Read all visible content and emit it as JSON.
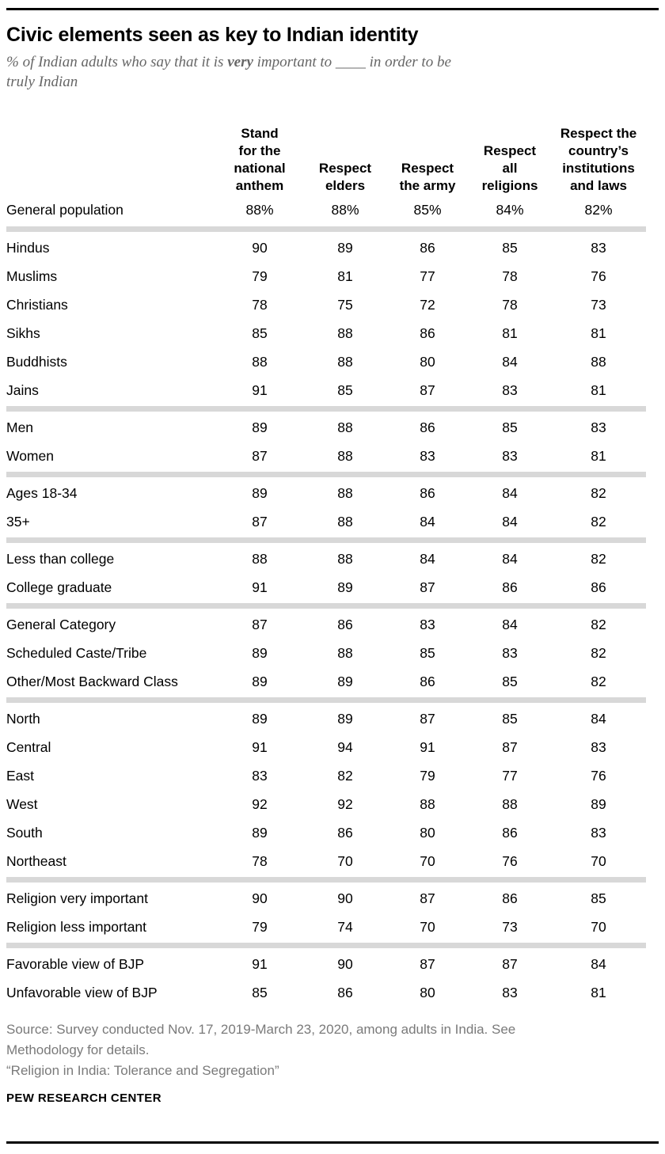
{
  "header": {
    "title": "Civic elements seen as key to Indian identity",
    "subtitle": {
      "prefix": "% of Indian adults who say that it is ",
      "bold": "very",
      "suffix": " important to ____ in order to be",
      "line2": "truly Indian"
    }
  },
  "chart_data": {
    "type": "table",
    "title": "Civic elements seen as key to Indian identity",
    "subtitle": "% of Indian adults who say that it is very important to ____ in order to be truly Indian",
    "unit": "% saying very important",
    "columns": [
      "Stand for the national anthem",
      "Respect elders",
      "Respect the army",
      "Respect all religions",
      "Respect the country’s institutions and laws"
    ],
    "column_headers": [
      [
        "Stand",
        "for the",
        "national",
        "anthem"
      ],
      [
        "Respect",
        "elders"
      ],
      [
        "Respect",
        "the army"
      ],
      [
        "Respect",
        "all",
        "religions"
      ],
      [
        "Respect the",
        "country’s",
        "institutions",
        "and laws"
      ]
    ],
    "general_population": {
      "label": "General population",
      "values": [
        "88%",
        "88%",
        "85%",
        "84%",
        "82%"
      ]
    },
    "groups": [
      {
        "name": "religious-group",
        "rows": [
          {
            "label": "Hindus",
            "values": [
              90,
              89,
              86,
              85,
              83
            ]
          },
          {
            "label": "Muslims",
            "values": [
              79,
              81,
              77,
              78,
              76
            ]
          },
          {
            "label": "Christians",
            "values": [
              78,
              75,
              72,
              78,
              73
            ]
          },
          {
            "label": "Sikhs",
            "values": [
              85,
              88,
              86,
              81,
              81
            ]
          },
          {
            "label": "Buddhists",
            "values": [
              88,
              88,
              80,
              84,
              88
            ]
          },
          {
            "label": "Jains",
            "values": [
              91,
              85,
              87,
              83,
              81
            ]
          }
        ]
      },
      {
        "name": "gender",
        "rows": [
          {
            "label": "Men",
            "values": [
              89,
              88,
              86,
              85,
              83
            ]
          },
          {
            "label": "Women",
            "values": [
              87,
              88,
              83,
              83,
              81
            ]
          }
        ]
      },
      {
        "name": "age",
        "rows": [
          {
            "label": "Ages 18-34",
            "values": [
              89,
              88,
              86,
              84,
              82
            ]
          },
          {
            "label": "35+",
            "values": [
              87,
              88,
              84,
              84,
              82
            ]
          }
        ]
      },
      {
        "name": "education",
        "rows": [
          {
            "label": "Less than college",
            "values": [
              88,
              88,
              84,
              84,
              82
            ]
          },
          {
            "label": "College graduate",
            "values": [
              91,
              89,
              87,
              86,
              86
            ]
          }
        ]
      },
      {
        "name": "caste",
        "rows": [
          {
            "label": "General Category",
            "values": [
              87,
              86,
              83,
              84,
              82
            ]
          },
          {
            "label": "Scheduled Caste/Tribe",
            "values": [
              89,
              88,
              85,
              83,
              82
            ]
          },
          {
            "label": "Other/Most Backward Class",
            "values": [
              89,
              89,
              86,
              85,
              82
            ]
          }
        ]
      },
      {
        "name": "region",
        "rows": [
          {
            "label": "North",
            "values": [
              89,
              89,
              87,
              85,
              84
            ]
          },
          {
            "label": "Central",
            "values": [
              91,
              94,
              91,
              87,
              83
            ]
          },
          {
            "label": "East",
            "values": [
              83,
              82,
              79,
              77,
              76
            ]
          },
          {
            "label": "West",
            "values": [
              92,
              92,
              88,
              88,
              89
            ]
          },
          {
            "label": "South",
            "values": [
              89,
              86,
              80,
              86,
              83
            ]
          },
          {
            "label": "Northeast",
            "values": [
              78,
              70,
              70,
              76,
              70
            ]
          }
        ]
      },
      {
        "name": "religion-importance",
        "rows": [
          {
            "label": "Religion very important",
            "values": [
              90,
              90,
              87,
              86,
              85
            ]
          },
          {
            "label": "Religion less important",
            "values": [
              79,
              74,
              70,
              73,
              70
            ]
          }
        ]
      },
      {
        "name": "bjp-view",
        "rows": [
          {
            "label": "Favorable view of BJP",
            "values": [
              91,
              90,
              87,
              87,
              84
            ]
          },
          {
            "label": "Unfavorable view of BJP",
            "values": [
              85,
              86,
              80,
              83,
              81
            ]
          }
        ]
      }
    ]
  },
  "footer": {
    "source_lines": [
      "Source: Survey conducted Nov. 17, 2019-March 23, 2020, among adults in India. See",
      "Methodology for details."
    ],
    "report_title": "“Religion in India: Tolerance and Segregation”",
    "brand": "PEW RESEARCH CENTER"
  },
  "colors": {
    "title_text": "#000000",
    "subtitle_text": "#666666",
    "body_text": "#000000",
    "source_text": "#7a7a7a",
    "divider": "#d8d8d8",
    "rule": "#000000"
  }
}
